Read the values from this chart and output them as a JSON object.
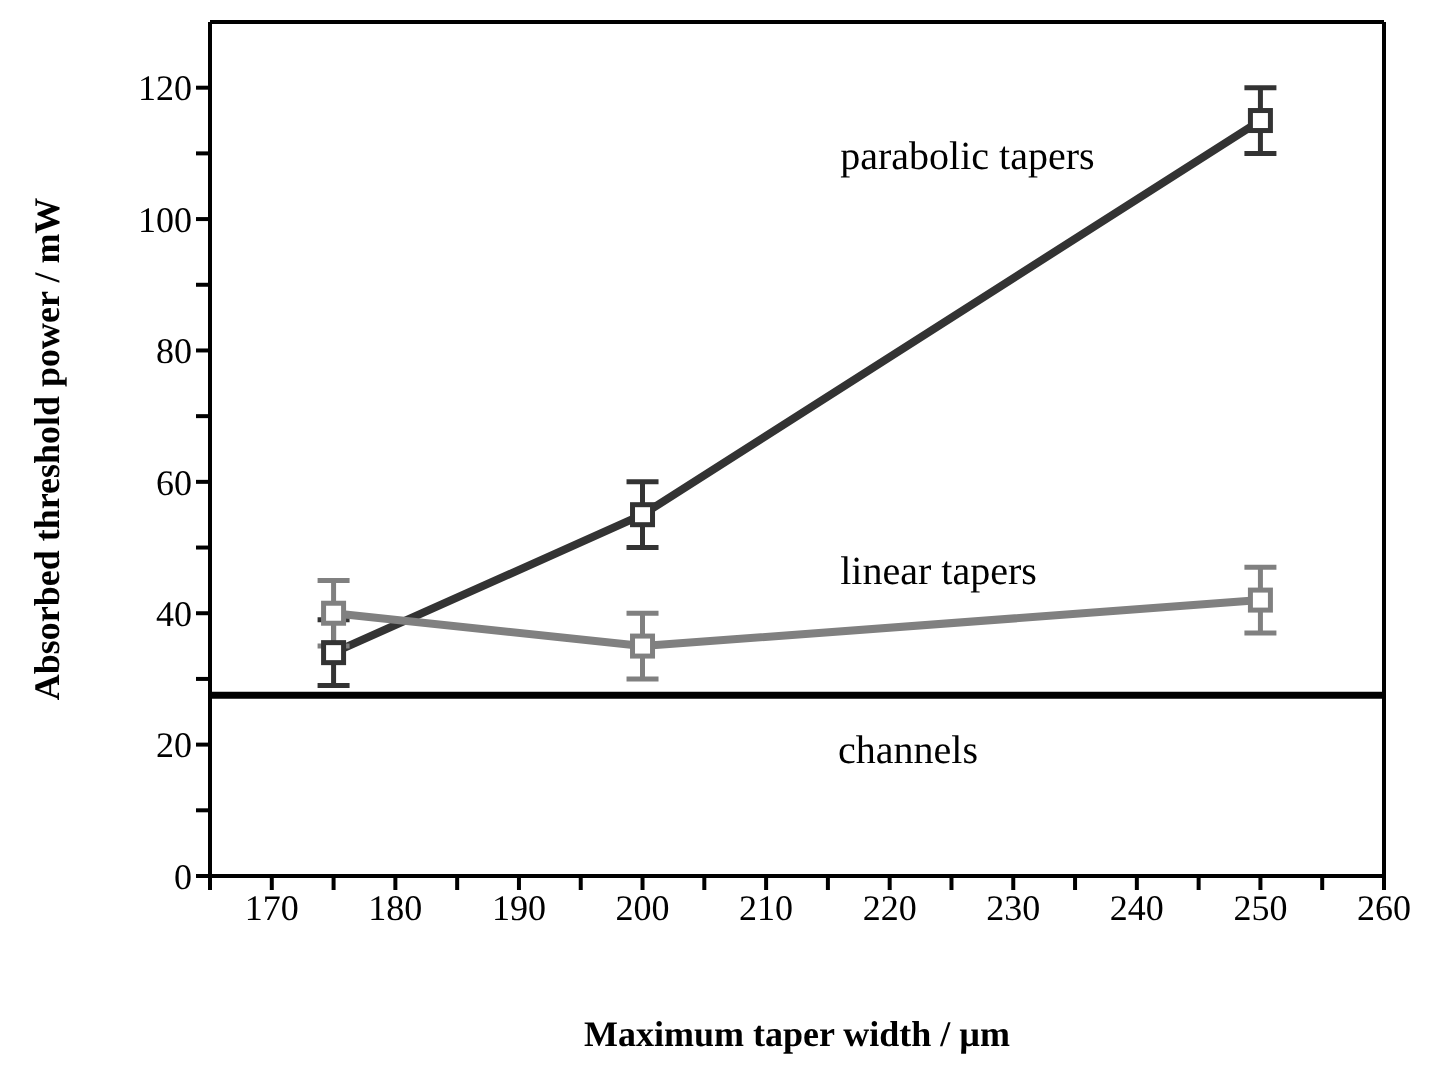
{
  "chart_data": {
    "type": "line",
    "xlabel": "Maximum taper width / µm",
    "ylabel": "Absorbed threshold power / mW",
    "x": [
      175,
      200,
      250
    ],
    "series": [
      {
        "name": "parabolic tapers",
        "color": "#333333",
        "values": [
          34,
          55,
          115
        ],
        "errors": [
          5,
          5,
          5
        ]
      },
      {
        "name": "linear tapers",
        "color": "#808080",
        "values": [
          40,
          35,
          42
        ],
        "errors": [
          5,
          5,
          5
        ]
      }
    ],
    "ref_lines": [
      {
        "axis": "y",
        "value": 27.5,
        "label": "channels",
        "color": "#000000"
      }
    ],
    "xlim": [
      165,
      260
    ],
    "xticks": [
      {
        "value": 165,
        "label": null
      },
      170,
      {
        "value": 175,
        "label": null
      },
      180,
      {
        "value": 185,
        "label": null
      },
      190,
      {
        "value": 195,
        "label": null
      },
      200,
      {
        "value": 205,
        "label": null
      },
      210,
      {
        "value": 215,
        "label": null
      },
      220,
      {
        "value": 225,
        "label": null
      },
      230,
      {
        "value": 235,
        "label": null
      },
      240,
      {
        "value": 245,
        "label": null
      },
      250,
      {
        "value": 255,
        "label": null
      },
      260
    ],
    "ylim": [
      0,
      130
    ],
    "yticks": [
      0,
      {
        "value": 10,
        "label": null
      },
      20,
      {
        "value": 30,
        "label": null
      },
      40,
      {
        "value": 50,
        "label": null
      },
      60,
      {
        "value": 70,
        "label": null
      },
      80,
      {
        "value": 90,
        "label": null
      },
      100,
      {
        "value": 110,
        "label": null
      },
      120
    ],
    "marker": "square",
    "line_style": "solid",
    "grid": false,
    "legend": false
  }
}
